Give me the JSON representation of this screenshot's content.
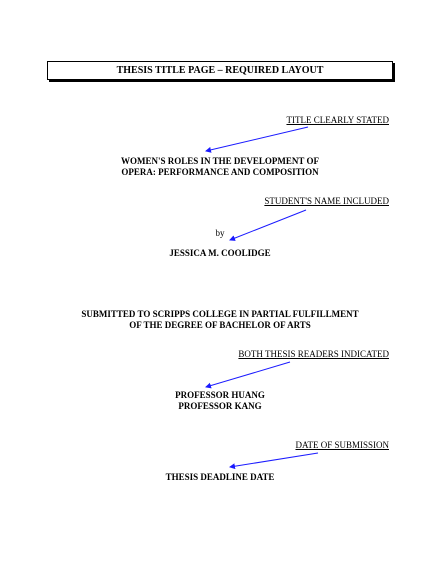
{
  "header": {
    "title": "THESIS TITLE PAGE – REQUIRED LAYOUT"
  },
  "annotations": {
    "title": "TITLE CLEARLY STATED",
    "student": "STUDENT'S NAME INCLUDED",
    "readers": "BOTH THESIS READERS INDICATED",
    "date": "DATE OF SUBMISSION"
  },
  "content": {
    "title_line1": "WOMEN'S ROLES IN THE DEVELOPMENT OF",
    "title_line2": "OPERA:  PERFORMANCE AND COMPOSITION",
    "by": "by",
    "student_name": "JESSICA M. COOLIDGE",
    "submitted_line1": "SUBMITTED TO SCRIPPS COLLEGE IN PARTIAL FULFILLMENT",
    "submitted_line2": "OF THE DEGREE OF BACHELOR OF ARTS",
    "reader1": "PROFESSOR HUANG",
    "reader2": "PROFESSOR KANG",
    "deadline": "THESIS DEADLINE DATE"
  },
  "colors": {
    "arrow": "#1a1aff"
  }
}
